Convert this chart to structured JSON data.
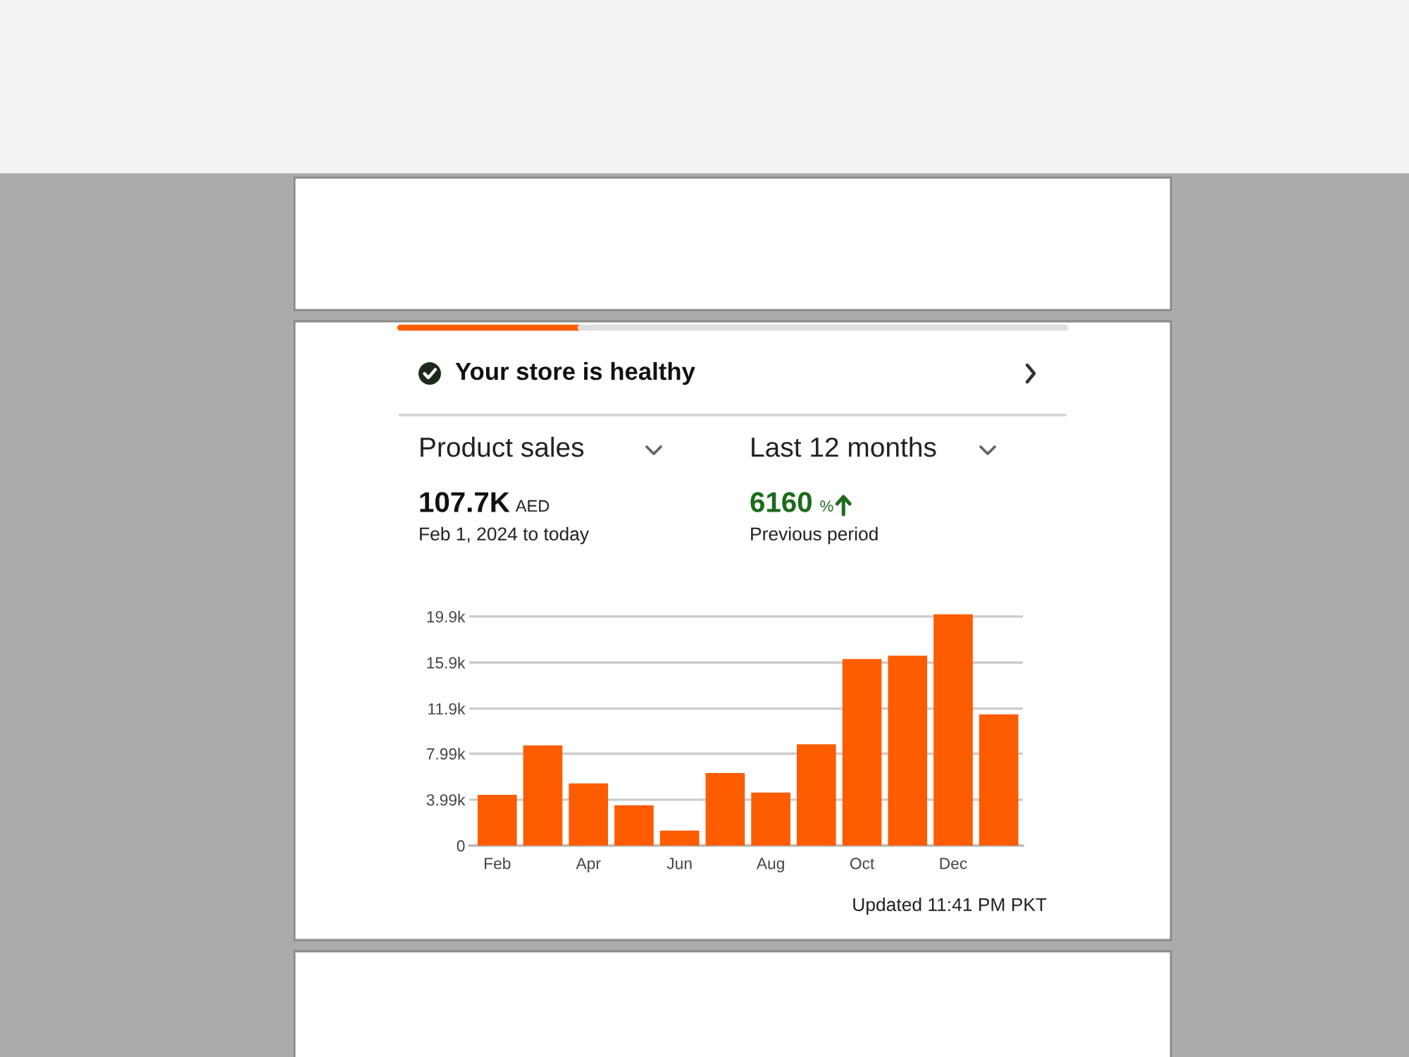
{
  "chart_data": {
    "type": "bar",
    "title": "Your store is healthy",
    "annotations": [
      "Product sales",
      "Last 12 months",
      "107.7K",
      "AED",
      "Feb 1, 2024 to today",
      "6160",
      "%",
      "Previous period",
      "Updated 11:41 PM PKT"
    ],
    "categories": [
      "Feb",
      null,
      "Apr",
      null,
      "Jun",
      null,
      "Aug",
      null,
      "Oct",
      null,
      "Dec",
      null
    ],
    "values": [
      4400,
      8700,
      5400,
      3500,
      1300,
      6300,
      4600,
      8800,
      16200,
      16500,
      20100,
      11400
    ],
    "color": "#fe5c00",
    "ylim": [
      0,
      20200
    ],
    "yticks": [
      0,
      {
        "value": 3990,
        "label": "3.99k"
      },
      {
        "value": 7990,
        "label": "7.99k"
      },
      {
        "value": 11900,
        "label": "11.9k"
      },
      {
        "value": 15900,
        "label": "15.9k"
      },
      {
        "value": 19900,
        "label": "19.9k"
      }
    ],
    "grid": "y"
  }
}
